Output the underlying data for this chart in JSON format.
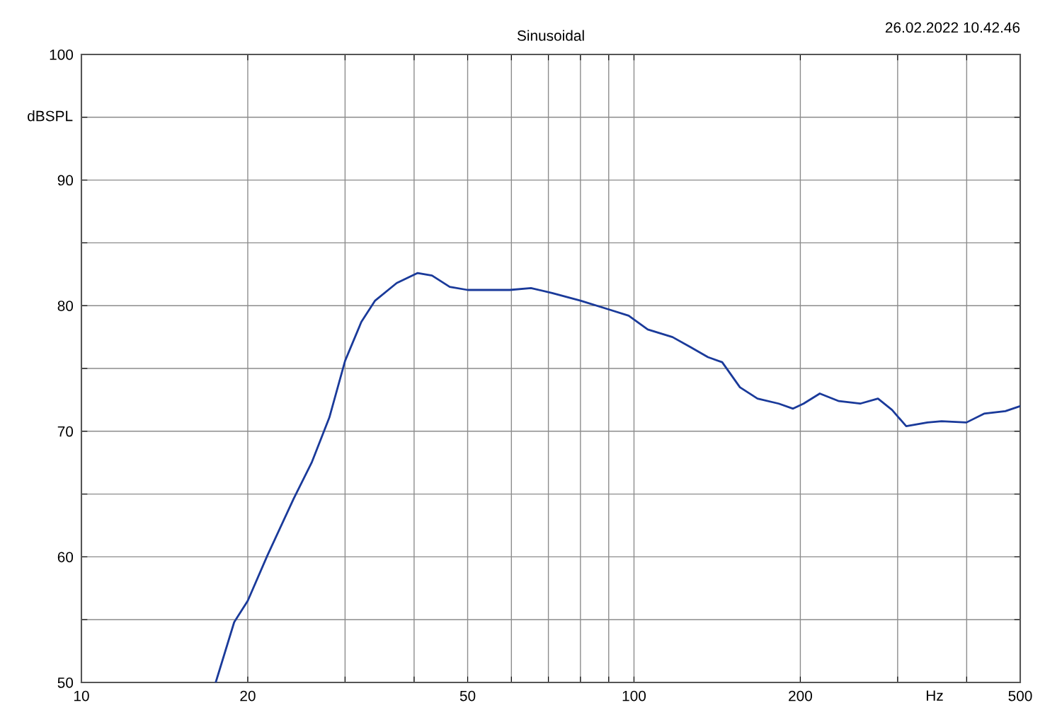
{
  "chart_data": {
    "type": "line",
    "title": "Sinusoidal",
    "xlabel": "Hz",
    "ylabel": "dBSPL",
    "annotations": [
      "26.02.2022 10.42.46"
    ],
    "log": "x",
    "grid": true,
    "marker": "none",
    "line_style": "solid",
    "xlim": [
      10,
      500
    ],
    "ylim": [
      50,
      100
    ],
    "xticks": [
      10,
      20,
      {
        "value": 30,
        "label": null
      },
      {
        "value": 40,
        "label": null
      },
      50,
      {
        "value": 60,
        "label": null
      },
      {
        "value": 70,
        "label": null
      },
      {
        "value": 80,
        "label": null
      },
      {
        "value": 90,
        "label": null
      },
      100,
      200,
      {
        "value": 300,
        "label": null
      },
      {
        "value": 400,
        "label": null
      },
      500
    ],
    "yticks": [
      50,
      {
        "value": 55,
        "label": null
      },
      60,
      {
        "value": 65,
        "label": null
      },
      70,
      {
        "value": 75,
        "label": null
      },
      80,
      {
        "value": 85,
        "label": null
      },
      90,
      {
        "value": 95,
        "label": null
      },
      100
    ],
    "series": [
      {
        "color": "#1a3a9a",
        "x": [
          17.5,
          18.9,
          20,
          21.7,
          24.2,
          26.1,
          28.1,
          30,
          32.1,
          34,
          37.2,
          40.6,
          43.1,
          46.4,
          50,
          59.6,
          65.1,
          71.1,
          80,
          90,
          97.8,
          105.9,
          117.4,
          126.5,
          136.1,
          144.4,
          155.5,
          167.3,
          182.8,
          194,
          202.7,
          216.9,
          234.9,
          256.6,
          276.4,
          293.1,
          310.9,
          339.7,
          360.3,
          399.6,
          430,
          470,
          500
        ],
        "values": [
          50,
          54.8,
          56.5,
          60.1,
          64.6,
          67.5,
          71.1,
          75.6,
          78.7,
          80.4,
          81.8,
          82.6,
          82.4,
          81.5,
          81.25,
          81.25,
          81.4,
          81.0,
          80.4,
          79.7,
          79.2,
          78.1,
          77.5,
          76.7,
          75.9,
          75.5,
          73.5,
          72.6,
          72.2,
          71.8,
          72.2,
          73.0,
          72.4,
          72.2,
          72.6,
          71.7,
          70.4,
          70.7,
          70.8,
          70.7,
          71.4,
          71.6,
          72.0
        ]
      }
    ]
  }
}
